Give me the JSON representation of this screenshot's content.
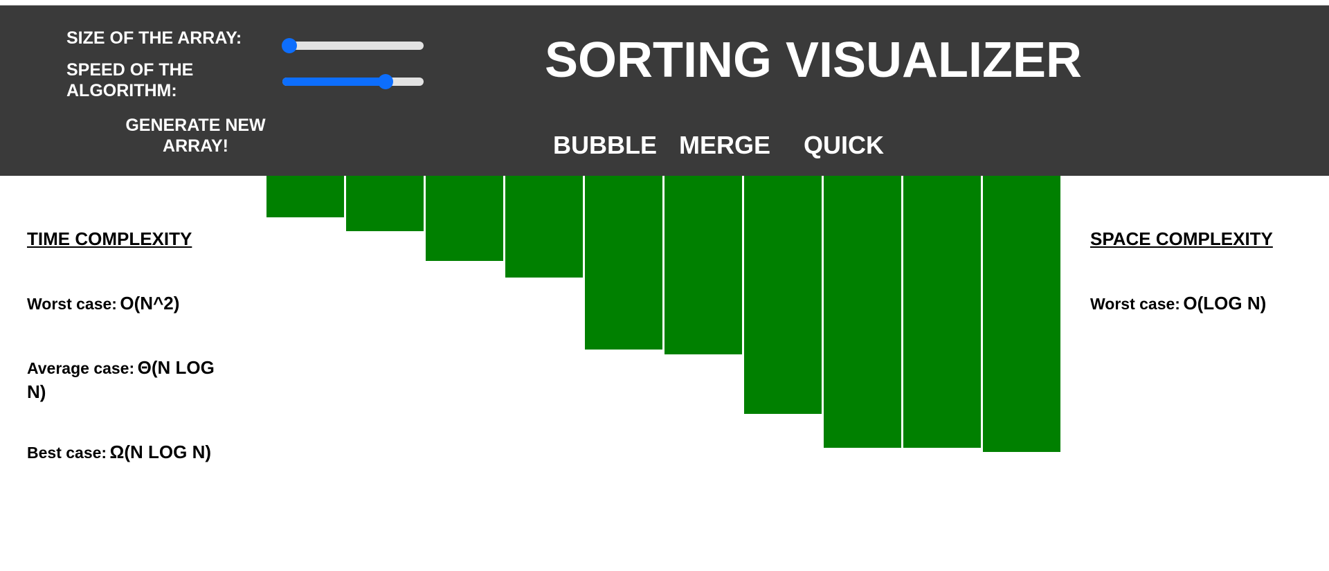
{
  "controls": {
    "size_label": "SIZE OF THE ARRAY:",
    "size_value": 0.05,
    "speed_label": "SPEED OF THE ALGORITHM:",
    "speed_value": 0.73,
    "generate_label": "GENERATE NEW ARRAY!",
    "accent_color": "#0d6efd"
  },
  "title": "SORTING VISUALIZER",
  "algorithms": [
    "BUBBLE",
    "MERGE",
    "QUICK"
  ],
  "array": {
    "bar_color": "#008000",
    "values": [
      60,
      80,
      123,
      147,
      251,
      258,
      344,
      393,
      393,
      399
    ],
    "max_value": 440
  },
  "time_complexity": {
    "heading": "TIME COMPLEXITY",
    "worst_label": "Worst case:",
    "worst_value": "O(N^2)",
    "average_label": "Average case:",
    "average_value": "Θ(N LOG N)",
    "best_label": "Best case:",
    "best_value": "Ω(N LOG N)"
  },
  "space_complexity": {
    "heading": "SPACE COMPLEXITY",
    "worst_label": "Worst case:",
    "worst_value": "O(LOG N)"
  }
}
